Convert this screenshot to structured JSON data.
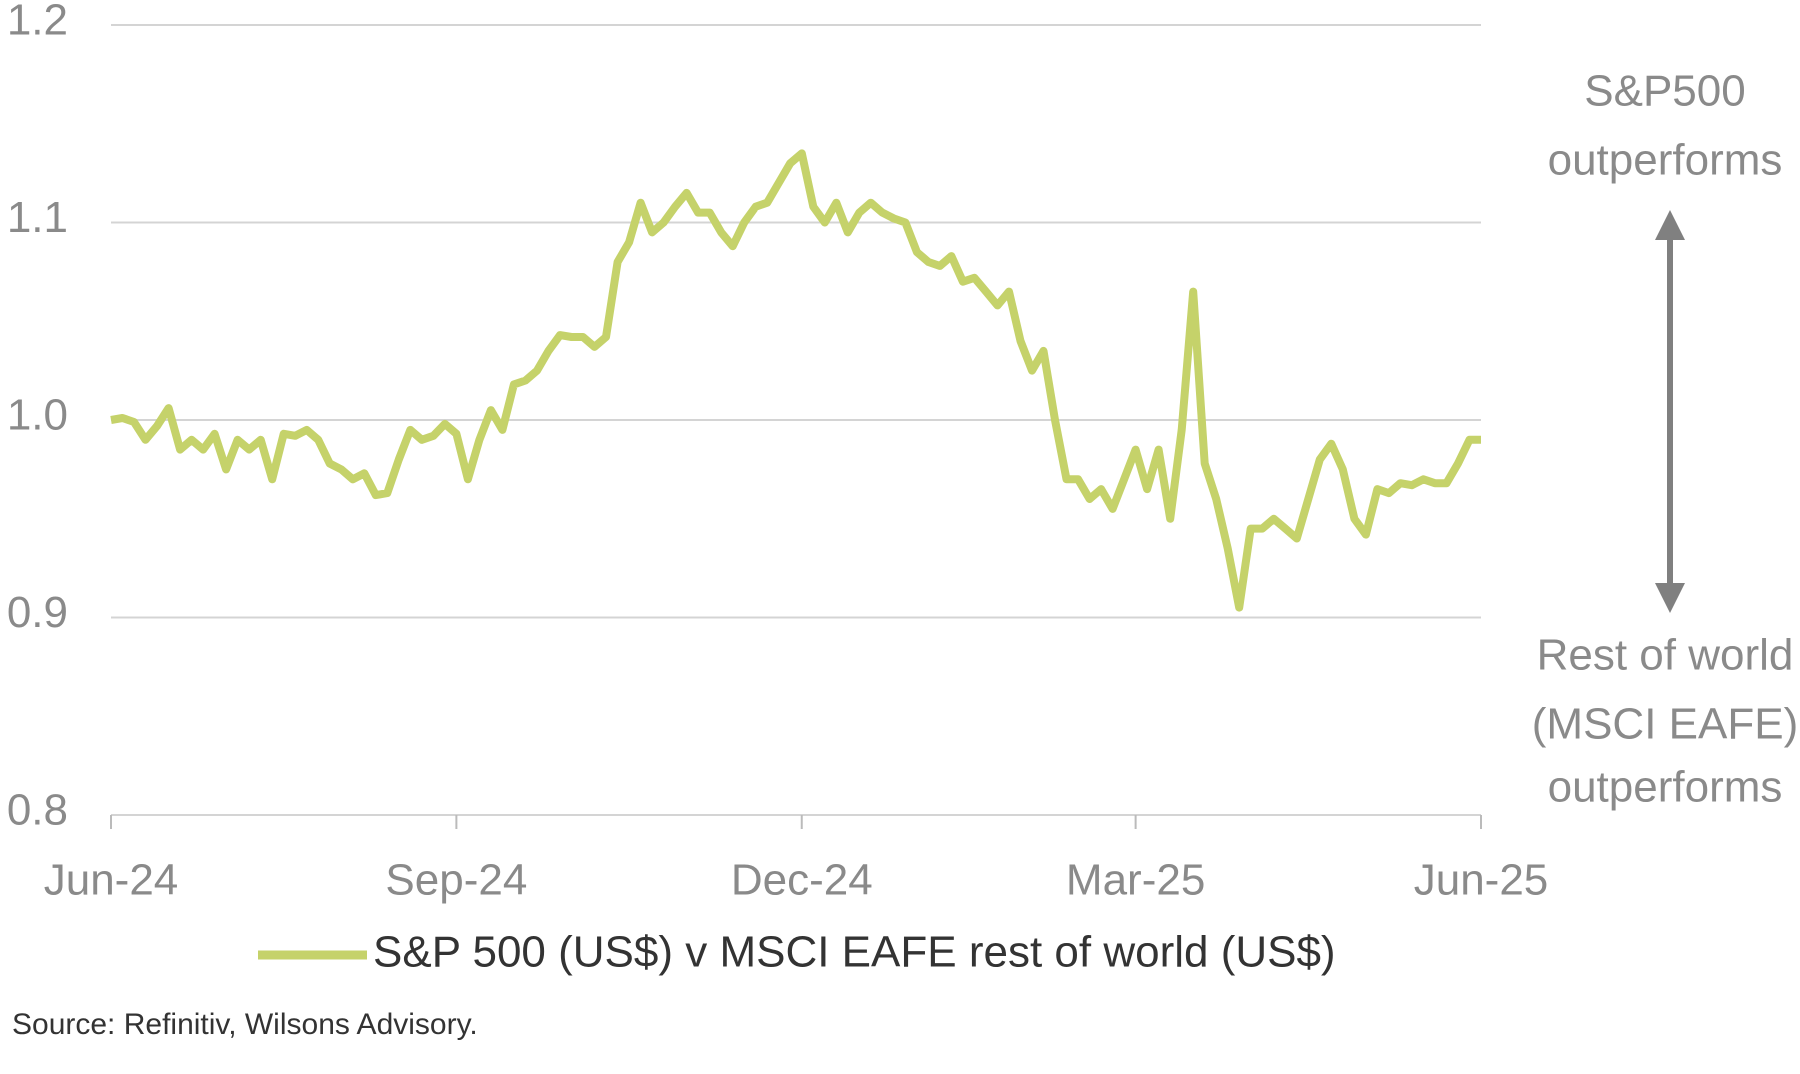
{
  "chart_data": {
    "type": "line",
    "series": [
      {
        "name": "S&P 500 (US$) v MSCI EAFE rest of world (US$)",
        "color": "#c5d26a",
        "values": [
          1.0,
          1.001,
          0.999,
          0.99,
          0.997,
          1.006,
          0.985,
          0.99,
          0.985,
          0.993,
          0.975,
          0.99,
          0.985,
          0.99,
          0.97,
          0.993,
          0.992,
          0.995,
          0.99,
          0.978,
          0.975,
          0.97,
          0.973,
          0.962,
          0.963,
          0.98,
          0.995,
          0.99,
          0.992,
          0.998,
          0.993,
          0.97,
          0.99,
          1.005,
          0.995,
          1.018,
          1.02,
          1.025,
          1.035,
          1.043,
          1.042,
          1.042,
          1.037,
          1.042,
          1.08,
          1.09,
          1.11,
          1.095,
          1.1,
          1.108,
          1.115,
          1.105,
          1.105,
          1.095,
          1.088,
          1.1,
          1.108,
          1.11,
          1.12,
          1.13,
          1.135,
          1.108,
          1.1,
          1.11,
          1.095,
          1.105,
          1.11,
          1.105,
          1.102,
          1.1,
          1.085,
          1.08,
          1.078,
          1.083,
          1.07,
          1.072,
          1.065,
          1.058,
          1.065,
          1.04,
          1.025,
          1.035,
          1.0,
          0.97,
          0.97,
          0.96,
          0.965,
          0.955,
          0.97,
          0.985,
          0.965,
          0.985,
          0.95,
          0.995,
          1.065,
          0.978,
          0.96,
          0.935,
          0.905,
          0.945,
          0.945,
          0.95,
          0.945,
          0.94,
          0.96,
          0.98,
          0.988,
          0.975,
          0.95,
          0.942,
          0.965,
          0.963,
          0.968,
          0.967,
          0.97,
          0.968,
          0.968,
          0.978,
          0.99,
          0.99
        ]
      }
    ],
    "xlim": [
      0,
      119
    ],
    "xticks": [
      {
        "value": 0,
        "label": "Jun-24"
      },
      {
        "value": 30,
        "label": "Sep-24"
      },
      {
        "value": 60,
        "label": "Dec-24"
      },
      {
        "value": 89,
        "label": "Mar-25"
      },
      {
        "value": 119,
        "label": "Jun-25"
      }
    ],
    "ylim": [
      0.8,
      1.2
    ],
    "yticks": [
      0.8,
      0.9,
      {
        "value": 1.0,
        "label": "1.0"
      },
      1.1,
      1.2
    ],
    "grid": true,
    "annotations": {
      "top": [
        "S&P500",
        "outperforms"
      ],
      "bottom": [
        "Rest of world",
        "(MSCI EAFE)",
        "outperforms"
      ]
    },
    "source": "Source: Refinitiv, Wilsons Advisory."
  }
}
